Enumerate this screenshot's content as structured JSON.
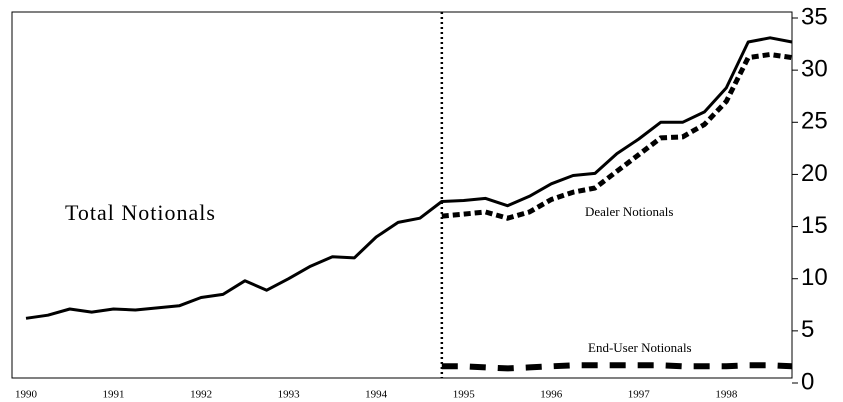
{
  "chart_data": {
    "type": "line",
    "annotations": [
      "Total Notionals",
      "Dealer Notionals",
      "End-User Notionals"
    ],
    "categories": [
      "1990",
      null,
      null,
      null,
      "1991",
      null,
      null,
      null,
      "1992",
      null,
      null,
      null,
      "1993",
      null,
      null,
      null,
      "1994",
      null,
      null,
      null,
      "1995",
      null,
      null,
      null,
      "1996",
      null,
      null,
      null,
      "1997",
      null,
      null,
      null,
      "1998",
      null,
      null,
      null
    ],
    "series": [
      {
        "name": "Total Notionals",
        "color": "#000000",
        "values": [
          6.2,
          6.5,
          7.1,
          6.8,
          7.1,
          7.0,
          7.2,
          7.4,
          8.2,
          8.5,
          9.8,
          8.9,
          10.0,
          11.2,
          12.1,
          12.0,
          14.0,
          15.4,
          15.8,
          17.4,
          17.5,
          17.7,
          17.0,
          17.9,
          19.1,
          19.9,
          20.1,
          22.0,
          23.4,
          25.0,
          25.0,
          26.0,
          28.3,
          32.7,
          33.1,
          32.7
        ]
      },
      {
        "name": "Dealer Notionals",
        "color": "#000000",
        "values": [
          null,
          null,
          null,
          null,
          null,
          null,
          null,
          null,
          null,
          null,
          null,
          null,
          null,
          null,
          null,
          null,
          null,
          null,
          null,
          16.0,
          16.2,
          16.4,
          15.8,
          16.4,
          17.6,
          18.3,
          18.7,
          20.3,
          21.9,
          23.5,
          23.6,
          24.8,
          27.0,
          31.2,
          31.5,
          31.2
        ]
      },
      {
        "name": "End-User Notionals",
        "color": "#000000",
        "values": [
          null,
          null,
          null,
          null,
          null,
          null,
          null,
          null,
          null,
          null,
          null,
          null,
          null,
          null,
          null,
          null,
          null,
          null,
          null,
          1.6,
          1.6,
          1.5,
          1.4,
          1.5,
          1.6,
          1.7,
          1.7,
          1.7,
          1.7,
          1.7,
          1.6,
          1.6,
          1.6,
          1.7,
          1.7,
          1.6
        ]
      }
    ],
    "ylim": [
      0,
      35
    ],
    "yticks": [
      0,
      5,
      10,
      15,
      20,
      25,
      30,
      35
    ],
    "grid": false
  }
}
